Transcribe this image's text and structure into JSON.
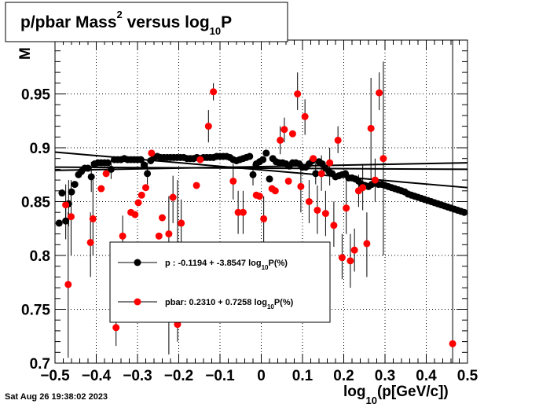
{
  "chart_data": {
    "type": "scatter",
    "title": {
      "base": "p/pbar Mass",
      "sup": "2",
      "mid": " versus log",
      "sub": "10",
      "end": "P"
    },
    "ylabel": "M",
    "xlabel": {
      "base": "log",
      "sub": "10",
      "end": "(p[GeV/c])"
    },
    "timestamp": "Sat Aug 26 19:38:02 2023",
    "xlim": [
      -0.5,
      0.5
    ],
    "ylim": [
      0.7,
      1.0
    ],
    "xticks": [
      -0.5,
      -0.4,
      -0.3,
      -0.2,
      -0.1,
      0,
      0.1,
      0.2,
      0.3,
      0.4,
      0.5
    ],
    "xtick_labels": [
      "−0.5",
      "−0.4",
      "−0.3",
      "−0.2",
      "−0.1",
      "0",
      "0.1",
      "0.2",
      "0.3",
      "0.4",
      "0.5"
    ],
    "yticks": [
      0.7,
      0.75,
      0.8,
      0.85,
      0.9,
      0.95
    ],
    "ytick_labels": [
      "0.7",
      "0.75",
      "0.8",
      "0.85",
      "0.9",
      "0.95"
    ],
    "grid": true,
    "legend": {
      "placement": "center-left",
      "entries": [
        {
          "marker_color": "#000000",
          "text_main": "p   : -0.1194 + -3.8547 log",
          "text_sub": "10",
          "text_end": "P(%)"
        },
        {
          "marker_color": "#ff0000",
          "text_main": "pbar: 0.2310 + 0.7258 log",
          "text_sub": "10",
          "text_end": "P(%)"
        }
      ]
    },
    "series": [
      {
        "name": "p",
        "color": "#000000",
        "points": [
          [
            -0.49,
            0.83
          ],
          [
            -0.483,
            0.858
          ],
          [
            -0.474,
            0.832
          ],
          [
            -0.467,
            0.848
          ],
          [
            -0.46,
            0.859
          ],
          [
            -0.452,
            0.866
          ],
          [
            -0.443,
            0.875
          ],
          [
            -0.436,
            0.878
          ],
          [
            -0.428,
            0.881
          ],
          [
            -0.42,
            0.881
          ],
          [
            -0.412,
            0.873
          ],
          [
            -0.404,
            0.885
          ],
          [
            -0.396,
            0.886
          ],
          [
            -0.388,
            0.886
          ],
          [
            -0.38,
            0.886
          ],
          [
            -0.372,
            0.886
          ],
          [
            -0.364,
            0.88
          ],
          [
            -0.356,
            0.889
          ],
          [
            -0.348,
            0.889
          ],
          [
            -0.34,
            0.889
          ],
          [
            -0.332,
            0.89
          ],
          [
            -0.324,
            0.889
          ],
          [
            -0.316,
            0.889
          ],
          [
            -0.308,
            0.889
          ],
          [
            -0.3,
            0.889
          ],
          [
            -0.292,
            0.889
          ],
          [
            -0.284,
            0.884
          ],
          [
            -0.276,
            0.876
          ],
          [
            -0.268,
            0.888
          ],
          [
            -0.26,
            0.891
          ],
          [
            -0.252,
            0.892
          ],
          [
            -0.244,
            0.891
          ],
          [
            -0.236,
            0.891
          ],
          [
            -0.228,
            0.891
          ],
          [
            -0.22,
            0.891
          ],
          [
            -0.212,
            0.891
          ],
          [
            -0.204,
            0.891
          ],
          [
            -0.196,
            0.891
          ],
          [
            -0.188,
            0.891
          ],
          [
            -0.18,
            0.89
          ],
          [
            -0.172,
            0.89
          ],
          [
            -0.164,
            0.89
          ],
          [
            -0.156,
            0.891
          ],
          [
            -0.148,
            0.89
          ],
          [
            -0.14,
            0.891
          ],
          [
            -0.132,
            0.891
          ],
          [
            -0.124,
            0.891
          ],
          [
            -0.116,
            0.891
          ],
          [
            -0.108,
            0.892
          ],
          [
            -0.1,
            0.892
          ],
          [
            -0.092,
            0.892
          ],
          [
            -0.084,
            0.892
          ],
          [
            -0.076,
            0.891
          ],
          [
            -0.068,
            0.889
          ],
          [
            -0.06,
            0.888
          ],
          [
            -0.052,
            0.889
          ],
          [
            -0.044,
            0.89
          ],
          [
            -0.036,
            0.891
          ],
          [
            -0.028,
            0.892
          ],
          [
            -0.02,
            0.875
          ],
          [
            -0.012,
            0.885
          ],
          [
            -0.004,
            0.887
          ],
          [
            0.004,
            0.889
          ],
          [
            0.012,
            0.895
          ],
          [
            0.02,
            0.871
          ],
          [
            0.028,
            0.89
          ],
          [
            0.036,
            0.887
          ],
          [
            0.044,
            0.886
          ],
          [
            0.052,
            0.886
          ],
          [
            0.06,
            0.885
          ],
          [
            0.068,
            0.883
          ],
          [
            0.076,
            0.886
          ],
          [
            0.084,
            0.886
          ],
          [
            0.092,
            0.885
          ],
          [
            0.1,
            0.882
          ],
          [
            0.108,
            0.882
          ],
          [
            0.116,
            0.885
          ],
          [
            0.124,
            0.888
          ],
          [
            0.132,
            0.876
          ],
          [
            0.14,
            0.887
          ],
          [
            0.148,
            0.885
          ],
          [
            0.156,
            0.881
          ],
          [
            0.164,
            0.878
          ],
          [
            0.172,
            0.876
          ],
          [
            0.18,
            0.873
          ],
          [
            0.188,
            0.874
          ],
          [
            0.196,
            0.875
          ],
          [
            0.204,
            0.876
          ],
          [
            0.212,
            0.872
          ],
          [
            0.22,
            0.872
          ],
          [
            0.228,
            0.871
          ],
          [
            0.236,
            0.869
          ],
          [
            0.244,
            0.866
          ],
          [
            0.252,
            0.865
          ],
          [
            0.26,
            0.864
          ],
          [
            0.268,
            0.866
          ],
          [
            0.276,
            0.868
          ],
          [
            0.284,
            0.866
          ],
          [
            0.292,
            0.866
          ],
          [
            0.3,
            0.865
          ],
          [
            0.308,
            0.864
          ],
          [
            0.316,
            0.863
          ],
          [
            0.324,
            0.862
          ],
          [
            0.332,
            0.861
          ],
          [
            0.34,
            0.86
          ],
          [
            0.348,
            0.859
          ],
          [
            0.356,
            0.857
          ],
          [
            0.364,
            0.856
          ],
          [
            0.372,
            0.855
          ],
          [
            0.38,
            0.854
          ],
          [
            0.388,
            0.853
          ],
          [
            0.396,
            0.852
          ],
          [
            0.404,
            0.851
          ],
          [
            0.412,
            0.85
          ],
          [
            0.42,
            0.849
          ],
          [
            0.428,
            0.848
          ],
          [
            0.436,
            0.847
          ],
          [
            0.444,
            0.846
          ],
          [
            0.452,
            0.845
          ],
          [
            0.46,
            0.844
          ],
          [
            0.468,
            0.843
          ],
          [
            0.476,
            0.842
          ],
          [
            0.484,
            0.841
          ],
          [
            0.492,
            0.84
          ]
        ],
        "errors": [
          [
            -0.474,
            0.815,
            0.85
          ],
          [
            -0.467,
            0.827,
            0.87
          ],
          [
            -0.412,
            0.859,
            0.887
          ],
          [
            -0.364,
            0.871,
            0.889
          ],
          [
            -0.276,
            0.866,
            0.886
          ],
          [
            -0.02,
            0.865,
            0.885
          ],
          [
            0.132,
            0.866,
            0.886
          ]
        ],
        "fit": [
          [
            -0.5,
            0.896
          ],
          [
            0.5,
            0.863
          ]
        ]
      },
      {
        "name": "pbar",
        "color": "#ff0000",
        "points": [
          [
            -0.474,
            0.847
          ],
          [
            -0.468,
            0.773
          ],
          [
            -0.461,
            0.836
          ],
          [
            -0.414,
            0.812
          ],
          [
            -0.408,
            0.834
          ],
          [
            -0.388,
            0.862
          ],
          [
            -0.376,
            0.876
          ],
          [
            -0.352,
            0.733
          ],
          [
            -0.336,
            0.818
          ],
          [
            -0.316,
            0.84
          ],
          [
            -0.306,
            0.838
          ],
          [
            -0.298,
            0.849
          ],
          [
            -0.29,
            0.856
          ],
          [
            -0.28,
            0.863
          ],
          [
            -0.266,
            0.895
          ],
          [
            -0.248,
            0.818
          ],
          [
            -0.24,
            0.835
          ],
          [
            -0.224,
            0.82
          ],
          [
            -0.214,
            0.854
          ],
          [
            -0.203,
            0.736
          ],
          [
            -0.194,
            0.83
          ],
          [
            -0.157,
            0.865
          ],
          [
            -0.148,
            0.889
          ],
          [
            -0.128,
            0.92
          ],
          [
            -0.116,
            0.952
          ],
          [
            -0.068,
            0.869
          ],
          [
            -0.056,
            0.84
          ],
          [
            -0.044,
            0.84
          ],
          [
            -0.012,
            0.856
          ],
          [
            -0.004,
            0.855
          ],
          [
            0.006,
            0.834
          ],
          [
            0.026,
            0.862
          ],
          [
            0.034,
            0.86
          ],
          [
            0.046,
            0.907
          ],
          [
            0.056,
            0.917
          ],
          [
            0.066,
            0.869
          ],
          [
            0.076,
            0.913
          ],
          [
            0.088,
            0.95
          ],
          [
            0.096,
            0.864
          ],
          [
            0.106,
            0.929
          ],
          [
            0.116,
            0.85
          ],
          [
            0.126,
            0.89
          ],
          [
            0.136,
            0.842
          ],
          [
            0.146,
            0.876
          ],
          [
            0.156,
            0.839
          ],
          [
            0.166,
            0.886
          ],
          [
            0.176,
            0.828
          ],
          [
            0.186,
            0.907
          ],
          [
            0.196,
            0.798
          ],
          [
            0.206,
            0.844
          ],
          [
            0.216,
            0.795
          ],
          [
            0.226,
            0.805
          ],
          [
            0.236,
            0.86
          ],
          [
            0.246,
            0.863
          ],
          [
            0.256,
            0.811
          ],
          [
            0.266,
            0.918
          ],
          [
            0.276,
            0.87
          ],
          [
            0.286,
            0.951
          ],
          [
            0.296,
            0.89
          ],
          [
            0.464,
            0.718
          ]
        ],
        "errors": [
          [
            -0.474,
            0.83,
            0.866
          ],
          [
            -0.468,
            0.705,
            0.84
          ],
          [
            -0.461,
            0.8,
            0.87
          ],
          [
            -0.414,
            0.78,
            0.84
          ],
          [
            -0.408,
            0.8,
            0.87
          ],
          [
            -0.352,
            0.716,
            0.76
          ],
          [
            -0.336,
            0.8,
            0.837
          ],
          [
            -0.224,
            0.708,
            0.855
          ],
          [
            -0.214,
            0.83,
            0.874
          ],
          [
            -0.203,
            0.72,
            0.87
          ],
          [
            -0.194,
            0.81,
            0.852
          ],
          [
            -0.128,
            0.905,
            0.935
          ],
          [
            -0.116,
            0.944,
            0.96
          ],
          [
            -0.068,
            0.852,
            0.885
          ],
          [
            -0.056,
            0.82,
            0.86
          ],
          [
            -0.044,
            0.82,
            0.86
          ],
          [
            0.006,
            0.812,
            0.855
          ],
          [
            0.046,
            0.894,
            0.92
          ],
          [
            0.056,
            0.905,
            0.928
          ],
          [
            0.088,
            0.935,
            0.97
          ],
          [
            0.096,
            0.84,
            0.888
          ],
          [
            0.106,
            0.912,
            0.945
          ],
          [
            0.116,
            0.83,
            0.87
          ],
          [
            0.136,
            0.82,
            0.865
          ],
          [
            0.146,
            0.86,
            0.893
          ],
          [
            0.156,
            0.818,
            0.86
          ],
          [
            0.166,
            0.865,
            0.9
          ],
          [
            0.176,
            0.808,
            0.85
          ],
          [
            0.186,
            0.895,
            0.92
          ],
          [
            0.196,
            0.778,
            0.82
          ],
          [
            0.206,
            0.82,
            0.87
          ],
          [
            0.216,
            0.77,
            0.82
          ],
          [
            0.226,
            0.785,
            0.825
          ],
          [
            0.236,
            0.845,
            0.875
          ],
          [
            0.246,
            0.842,
            0.885
          ],
          [
            0.256,
            0.78,
            0.84
          ],
          [
            0.266,
            0.87,
            0.965
          ],
          [
            0.276,
            0.85,
            0.89
          ],
          [
            0.286,
            0.935,
            0.97
          ],
          [
            0.296,
            0.8,
            0.98
          ],
          [
            0.464,
            0.7,
            1.0
          ]
        ],
        "fit": [
          [
            -0.5,
            0.879
          ],
          [
            0.5,
            0.886
          ]
        ]
      }
    ],
    "extra_lines": [
      {
        "color": "#000000",
        "points": [
          [
            -0.5,
            0.882
          ],
          [
            0.5,
            0.88
          ]
        ]
      }
    ]
  }
}
